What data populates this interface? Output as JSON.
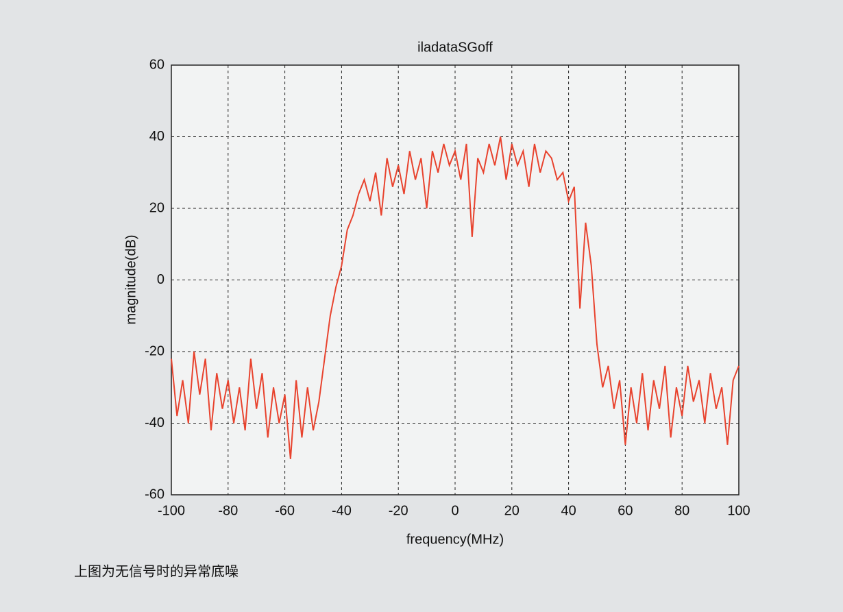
{
  "chart_data": {
    "type": "line",
    "title": "iladataSGoff",
    "xlabel": "frequency(MHz)",
    "ylabel": "magnitude(dB)",
    "x": [
      -100,
      -98,
      -96,
      -94,
      -92,
      -90,
      -88,
      -86,
      -84,
      -82,
      -80,
      -78,
      -76,
      -74,
      -72,
      -70,
      -68,
      -66,
      -64,
      -62,
      -60,
      -58,
      -56,
      -54,
      -52,
      -50,
      -48,
      -46,
      -44,
      -42,
      -40,
      -38,
      -36,
      -34,
      -32,
      -30,
      -28,
      -26,
      -24,
      -22,
      -20,
      -18,
      -16,
      -14,
      -12,
      -10,
      -8,
      -6,
      -4,
      -2,
      0,
      2,
      4,
      6,
      8,
      10,
      12,
      14,
      16,
      18,
      20,
      22,
      24,
      26,
      28,
      30,
      32,
      34,
      36,
      38,
      40,
      42,
      44,
      46,
      48,
      50,
      52,
      54,
      56,
      58,
      60,
      62,
      64,
      66,
      68,
      70,
      72,
      74,
      76,
      78,
      80,
      82,
      84,
      86,
      88,
      90,
      92,
      94,
      96,
      98,
      100
    ],
    "values": [
      -22,
      -38,
      -28,
      -40,
      -20,
      -32,
      -22,
      -42,
      -26,
      -36,
      -28,
      -40,
      -30,
      -42,
      -22,
      -36,
      -26,
      -44,
      -30,
      -40,
      -32,
      -50,
      -28,
      -44,
      -30,
      -42,
      -34,
      -22,
      -10,
      -2,
      4,
      14,
      18,
      24,
      28,
      22,
      30,
      18,
      34,
      26,
      32,
      24,
      36,
      28,
      34,
      20,
      36,
      30,
      38,
      32,
      36,
      28,
      38,
      12,
      34,
      30,
      38,
      32,
      40,
      28,
      38,
      32,
      36,
      26,
      38,
      30,
      36,
      34,
      28,
      30,
      22,
      26,
      -8,
      16,
      4,
      -18,
      -30,
      -24,
      -36,
      -28,
      -46,
      -30,
      -40,
      -26,
      -42,
      -28,
      -36,
      -24,
      -44,
      -30,
      -38,
      -24,
      -34,
      -28,
      -40,
      -26,
      -36,
      -30,
      -46,
      -28,
      -24
    ],
    "color": "#e8432e",
    "xlim": [
      -100,
      100
    ],
    "xticks": [
      -100,
      -80,
      -60,
      -40,
      -20,
      0,
      20,
      40,
      60,
      80,
      100
    ],
    "ylim": [
      -60,
      60
    ],
    "yticks": [
      -60,
      -40,
      -20,
      0,
      20,
      40,
      60
    ],
    "grid": true
  },
  "caption": "上图为无信号时的异常底噪"
}
